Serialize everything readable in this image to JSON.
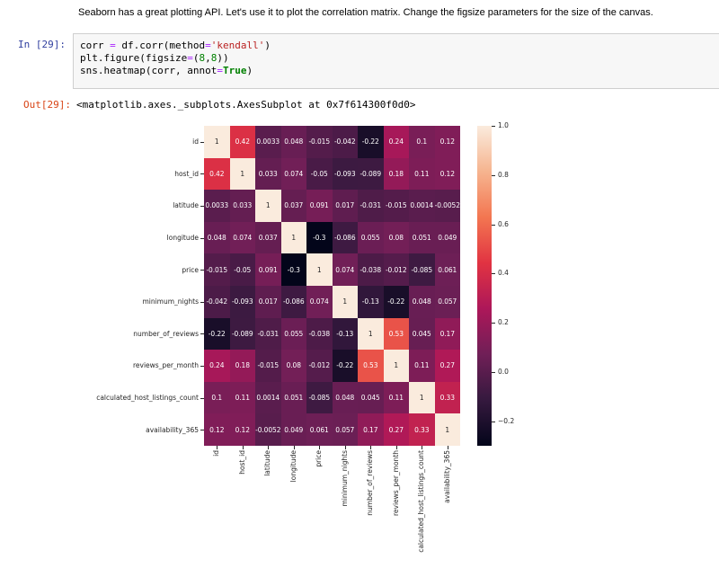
{
  "notebook": {
    "markdown_cell": {
      "text": "Seaborn has a great plotting API. Let's use it to plot the correlation matrix. Change the figsize parameters for the size of the canvas."
    },
    "code_cell": {
      "prompt": "In [29]:",
      "code_lines": [
        [
          {
            "t": "corr "
          },
          {
            "t": "=",
            "c": "op"
          },
          {
            "t": " df.corr(method"
          },
          {
            "t": "=",
            "c": "op"
          },
          {
            "t": "'kendall'",
            "c": "str"
          },
          {
            "t": ")"
          }
        ],
        [
          {
            "t": "plt.figure(figsize"
          },
          {
            "t": "=",
            "c": "op"
          },
          {
            "t": "("
          },
          {
            "t": "8",
            "c": "num"
          },
          {
            "t": ","
          },
          {
            "t": "8",
            "c": "num"
          },
          {
            "t": "))"
          }
        ],
        [
          {
            "t": "sns.heatmap(corr, annot"
          },
          {
            "t": "=",
            "c": "op"
          },
          {
            "t": "True",
            "c": "kw"
          },
          {
            "t": ")"
          }
        ]
      ]
    },
    "output_cell": {
      "prompt": "Out[29]:",
      "repr_text": "<matplotlib.axes._subplots.AxesSubplot at 0x7f614300f0d0>"
    }
  },
  "chart_data": {
    "type": "heatmap",
    "title": "",
    "xlabel": "",
    "ylabel": "",
    "grid": false,
    "legend_position": "right-colorbar",
    "categories": [
      "id",
      "host_id",
      "latitude",
      "longitude",
      "price",
      "minimum_nights",
      "number_of_reviews",
      "reviews_per_month",
      "calculated_host_listings_count",
      "availability_365"
    ],
    "matrix": [
      [
        1,
        0.42,
        0.0033,
        0.048,
        -0.015,
        -0.042,
        -0.22,
        0.24,
        0.1,
        0.12
      ],
      [
        0.42,
        1,
        0.033,
        0.074,
        -0.05,
        -0.093,
        -0.089,
        0.18,
        0.11,
        0.12
      ],
      [
        0.0033,
        0.033,
        1,
        0.037,
        0.091,
        0.017,
        -0.031,
        -0.015,
        0.0014,
        -0.0052
      ],
      [
        0.048,
        0.074,
        0.037,
        1,
        -0.3,
        -0.086,
        0.055,
        0.08,
        0.051,
        0.049
      ],
      [
        -0.015,
        -0.05,
        0.091,
        -0.3,
        1,
        0.074,
        -0.038,
        -0.012,
        -0.085,
        0.061
      ],
      [
        -0.042,
        -0.093,
        0.017,
        -0.086,
        0.074,
        1,
        -0.13,
        -0.22,
        0.048,
        0.057
      ],
      [
        -0.22,
        -0.089,
        -0.031,
        0.055,
        -0.038,
        -0.13,
        1,
        0.53,
        0.045,
        0.17
      ],
      [
        0.24,
        0.18,
        -0.015,
        0.08,
        -0.012,
        -0.22,
        0.53,
        1,
        0.11,
        0.27
      ],
      [
        0.1,
        0.11,
        0.0014,
        0.051,
        -0.085,
        0.048,
        0.045,
        0.11,
        1,
        0.33
      ],
      [
        0.12,
        0.12,
        -0.0052,
        0.049,
        0.061,
        0.057,
        0.17,
        0.27,
        0.33,
        1
      ]
    ],
    "annotations": [
      [
        "1",
        "0.42",
        "0.0033",
        "0.048",
        "-0.015",
        "-0.042",
        "-0.22",
        "0.24",
        "0.1",
        "0.12"
      ],
      [
        "0.42",
        "1",
        "0.033",
        "0.074",
        "-0.05",
        "-0.093",
        "-0.089",
        "0.18",
        "0.11",
        "0.12"
      ],
      [
        "0.0033",
        "0.033",
        "1",
        "0.037",
        "0.091",
        "0.017",
        "-0.031",
        "-0.015",
        "0.0014",
        "-0.0052"
      ],
      [
        "0.048",
        "0.074",
        "0.037",
        "1",
        "-0.3",
        "-0.086",
        "0.055",
        "0.08",
        "0.051",
        "0.049"
      ],
      [
        "-0.015",
        "-0.05",
        "0.091",
        "-0.3",
        "1",
        "0.074",
        "-0.038",
        "-0.012",
        "-0.085",
        "0.061"
      ],
      [
        "-0.042",
        "-0.093",
        "0.017",
        "-0.086",
        "0.074",
        "1",
        "-0.13",
        "-0.22",
        "0.048",
        "0.057"
      ],
      [
        "-0.22",
        "-0.089",
        "-0.031",
        "0.055",
        "-0.038",
        "-0.13",
        "1",
        "0.53",
        "0.045",
        "0.17"
      ],
      [
        "0.24",
        "0.18",
        "-0.015",
        "0.08",
        "-0.012",
        "-0.22",
        "0.53",
        "1",
        "0.11",
        "0.27"
      ],
      [
        "0.1",
        "0.11",
        "0.0014",
        "0.051",
        "-0.085",
        "0.048",
        "0.045",
        "0.11",
        "1",
        "0.33"
      ],
      [
        "0.12",
        "0.12",
        "-0.0052",
        "0.049",
        "0.061",
        "0.057",
        "0.17",
        "0.27",
        "0.33",
        "1"
      ]
    ],
    "vmin": -0.3,
    "vmax": 1.0,
    "colormap": "rocket",
    "colormap_stops": [
      {
        "t": 0.0,
        "color": "#03051A"
      },
      {
        "t": 0.143,
        "color": "#35193E"
      },
      {
        "t": 0.286,
        "color": "#701F57"
      },
      {
        "t": 0.429,
        "color": "#AD1759"
      },
      {
        "t": 0.571,
        "color": "#E13342"
      },
      {
        "t": 0.714,
        "color": "#F37651"
      },
      {
        "t": 0.857,
        "color": "#F6B48F"
      },
      {
        "t": 1.0,
        "color": "#FAEBDD"
      }
    ],
    "colorbar_ticks": [
      {
        "label": "1.0",
        "value": 1.0
      },
      {
        "label": "0.8",
        "value": 0.8
      },
      {
        "label": "0.6",
        "value": 0.6
      },
      {
        "label": "0.4",
        "value": 0.4
      },
      {
        "label": "0.2",
        "value": 0.2
      },
      {
        "label": "0.0",
        "value": 0.0
      },
      {
        "label": "−0.2",
        "value": -0.2
      }
    ]
  },
  "colors": {
    "prompt_in": "#303F9F",
    "prompt_out": "#D84315",
    "code_bg": "#F7F7F7",
    "code_border": "#CFCFCF",
    "syntax_operator": "#AA22FF",
    "syntax_string": "#BA2121",
    "syntax_number": "#008000",
    "syntax_keyword": "#008000",
    "tick_label": "#262626",
    "annot_light": "#FFFFFF",
    "annot_dark": "#262626"
  }
}
